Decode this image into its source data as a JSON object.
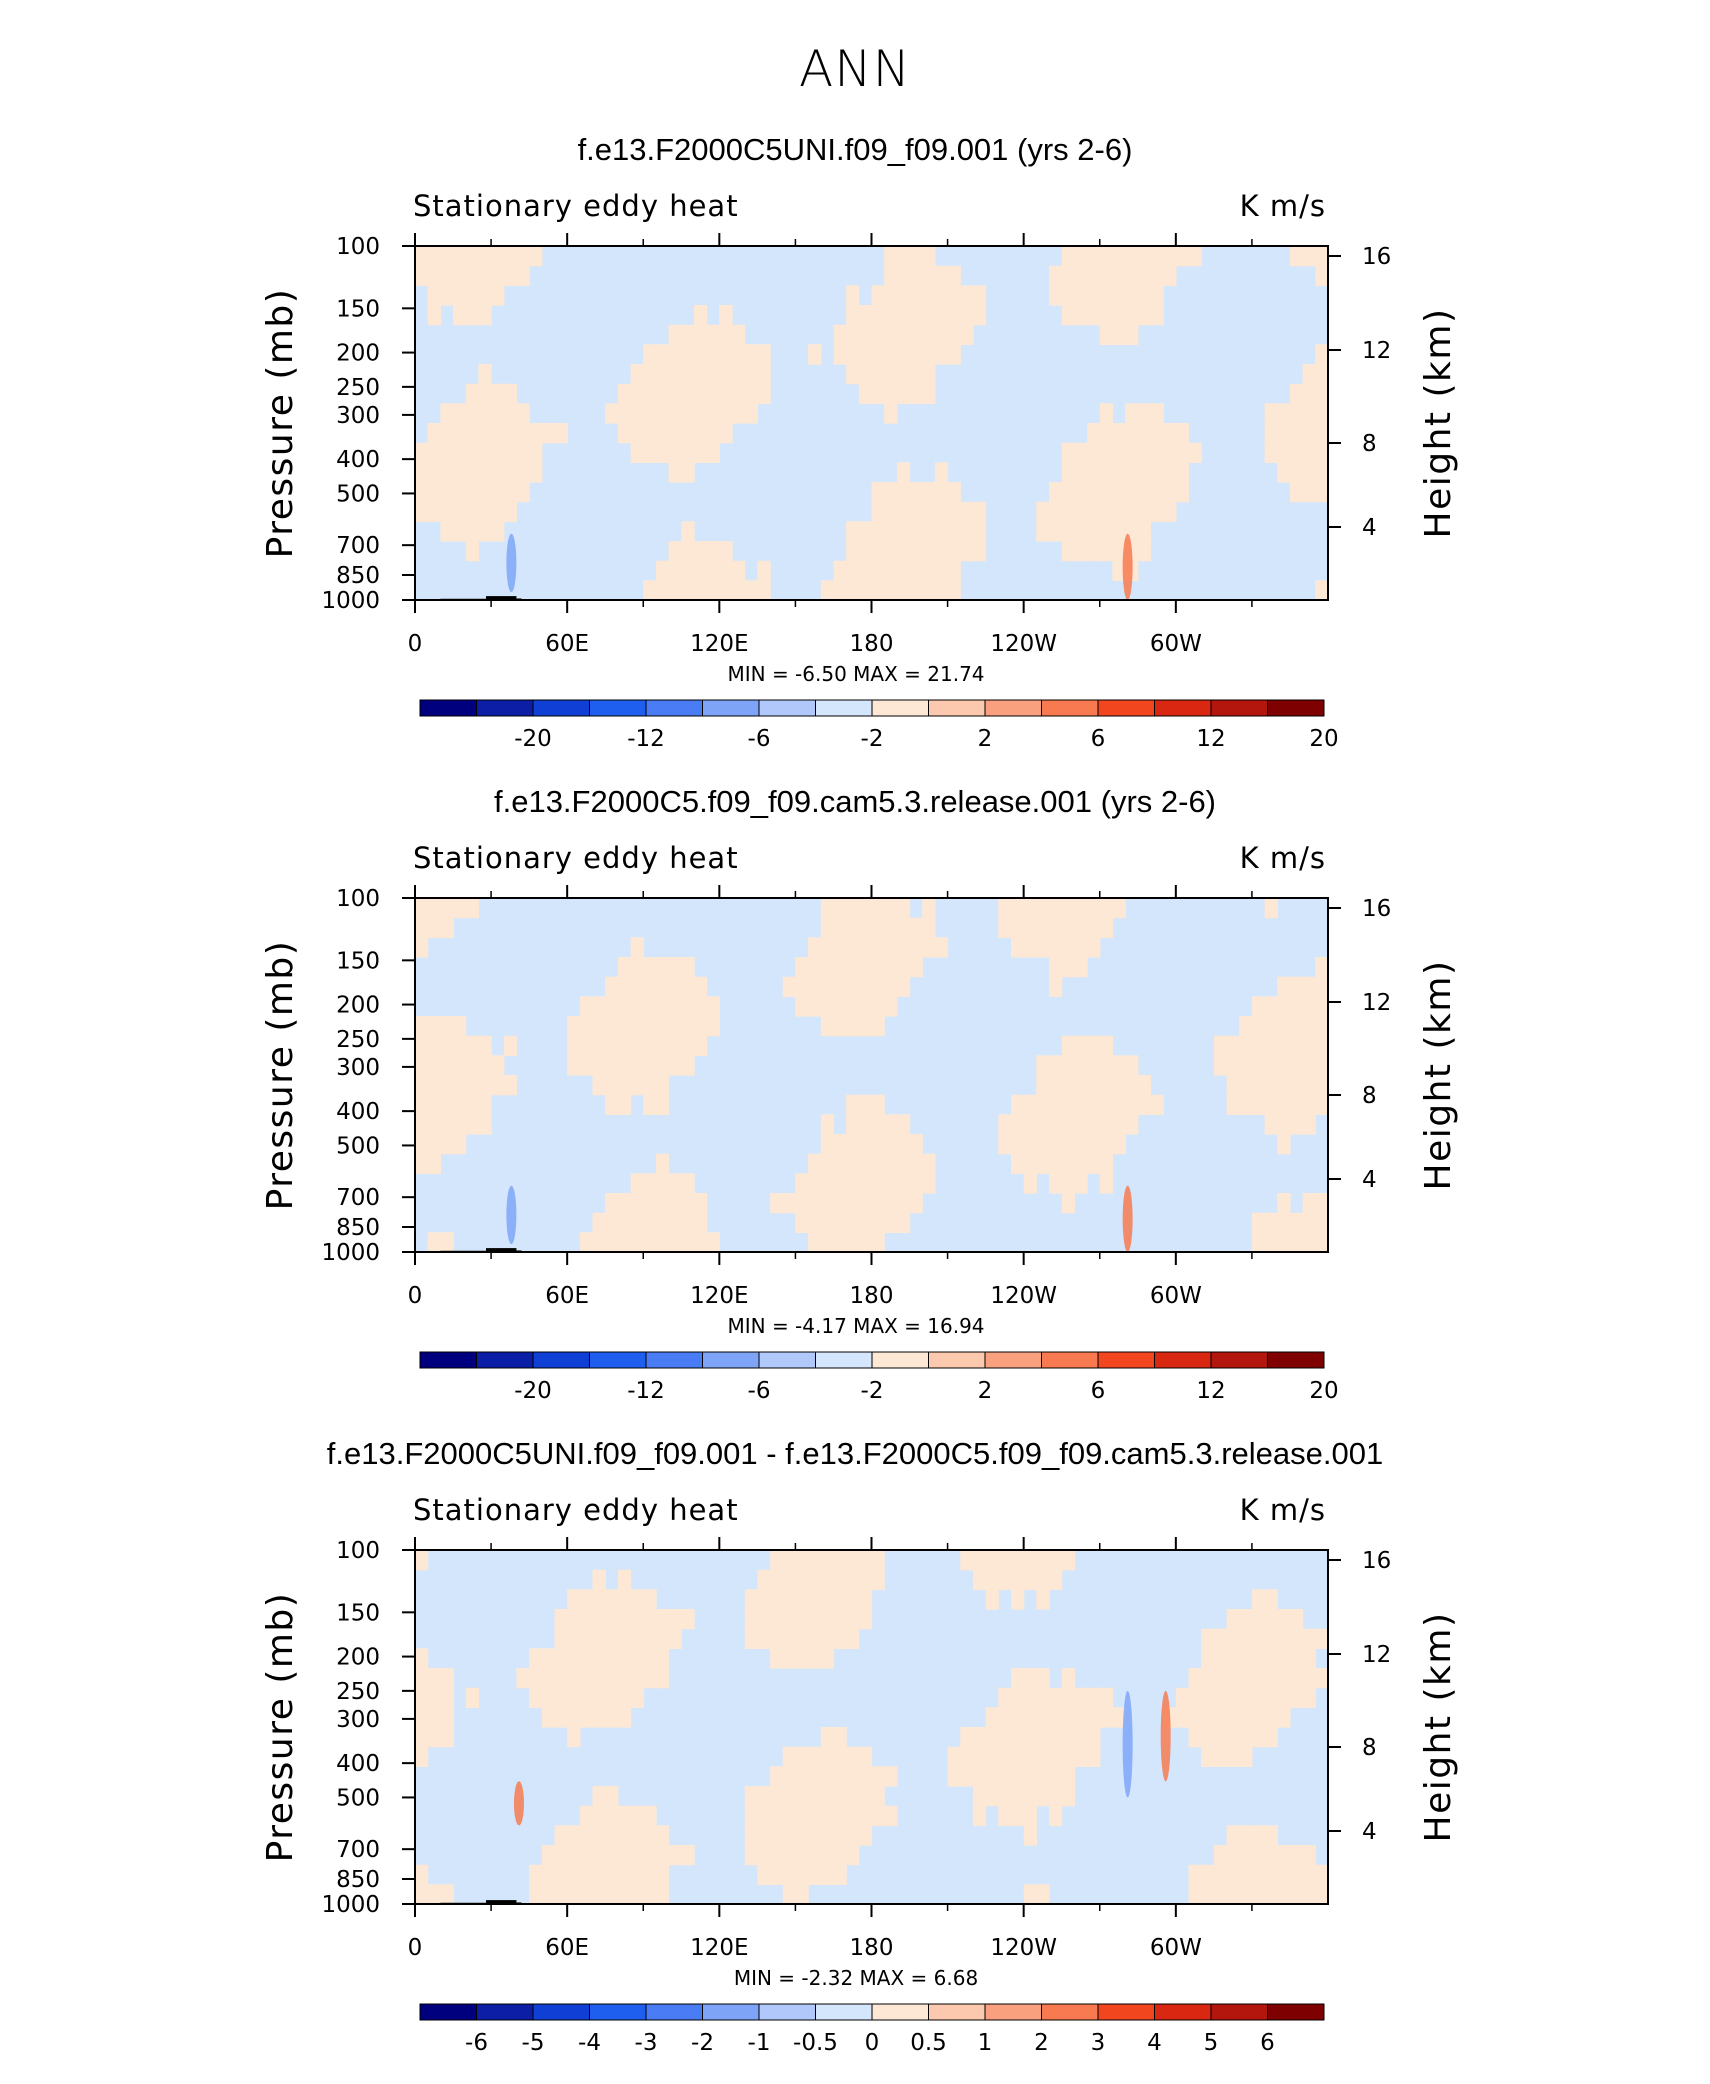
{
  "main_title": "ANN",
  "chart_data": [
    {
      "type": "heatmap",
      "title": "f.e13.F2000C5UNI.f09_f09.001 (yrs 2-6)",
      "left_string": "Stationary eddy heat",
      "right_string": "K m/s",
      "xlabel": "",
      "ylabel": "Pressure (mb)",
      "right_ylabel": "Height (km)",
      "x_ticks": [
        "0",
        "60E",
        "120E",
        "180",
        "120W",
        "60W"
      ],
      "x_tick_values": [
        0,
        60,
        120,
        180,
        240,
        300
      ],
      "xlim": [
        0,
        360
      ],
      "y_ticks": [
        "100",
        "150",
        "200",
        "250",
        "300",
        "400",
        "500",
        "700",
        "850",
        "1000"
      ],
      "y_tick_values": [
        100,
        150,
        200,
        250,
        300,
        400,
        500,
        700,
        850,
        1000
      ],
      "ylim": [
        1000,
        100
      ],
      "y_scale": "log",
      "right_y_ticks": [
        "16",
        "12",
        "8",
        "4"
      ],
      "stats_text": "MIN =   -6.50   MAX =   21.74",
      "colorbar_labels": [
        "-20",
        "-12",
        "-6",
        "-2",
        "2",
        "6",
        "12",
        "20"
      ],
      "colorbar_colors": [
        "#00007f",
        "#0b1ea5",
        "#0f3fd4",
        "#1f5ff0",
        "#4a7df5",
        "#7ea4f7",
        "#b0c9fa",
        "#d3e6fb",
        "#fde8d6",
        "#fcc8ae",
        "#f9a07f",
        "#f77a50",
        "#f2461f",
        "#d92712",
        "#b2160c",
        "#7f0000"
      ],
      "colors": {
        "negative_light": "#d3e6fb",
        "positive_light": "#fde8d6",
        "strong_negative": "#7ea4f7",
        "strong_positive": "#f77a50",
        "topography": "#000000"
      },
      "features": [
        {
          "lon": 38,
          "p": [
            650,
            950
          ],
          "sign": -1,
          "strength": "moderate"
        },
        {
          "lon": 281,
          "p": [
            650,
            1000
          ],
          "sign": 1,
          "strength": "strong"
        }
      ],
      "min": -6.5,
      "max": 21.74
    },
    {
      "type": "heatmap",
      "title": "f.e13.F2000C5.f09_f09.cam5.3.release.001 (yrs 2-6)",
      "left_string": "Stationary eddy heat",
      "right_string": "K m/s",
      "xlabel": "",
      "ylabel": "Pressure (mb)",
      "right_ylabel": "Height (km)",
      "x_ticks": [
        "0",
        "60E",
        "120E",
        "180",
        "120W",
        "60W"
      ],
      "x_tick_values": [
        0,
        60,
        120,
        180,
        240,
        300
      ],
      "xlim": [
        0,
        360
      ],
      "y_ticks": [
        "100",
        "150",
        "200",
        "250",
        "300",
        "400",
        "500",
        "700",
        "850",
        "1000"
      ],
      "y_tick_values": [
        100,
        150,
        200,
        250,
        300,
        400,
        500,
        700,
        850,
        1000
      ],
      "ylim": [
        1000,
        100
      ],
      "y_scale": "log",
      "right_y_ticks": [
        "16",
        "12",
        "8",
        "4"
      ],
      "stats_text": "MIN =   -4.17   MAX =   16.94",
      "colorbar_labels": [
        "-20",
        "-12",
        "-6",
        "-2",
        "2",
        "6",
        "12",
        "20"
      ],
      "colorbar_colors": [
        "#00007f",
        "#0b1ea5",
        "#0f3fd4",
        "#1f5ff0",
        "#4a7df5",
        "#7ea4f7",
        "#b0c9fa",
        "#d3e6fb",
        "#fde8d6",
        "#fcc8ae",
        "#f9a07f",
        "#f77a50",
        "#f2461f",
        "#d92712",
        "#b2160c",
        "#7f0000"
      ],
      "colors": {
        "negative_light": "#d3e6fb",
        "positive_light": "#fde8d6",
        "strong_negative": "#7ea4f7",
        "strong_positive": "#f77a50",
        "topography": "#000000"
      },
      "features": [
        {
          "lon": 38,
          "p": [
            650,
            950
          ],
          "sign": -1,
          "strength": "moderate"
        },
        {
          "lon": 281,
          "p": [
            650,
            1000
          ],
          "sign": 1,
          "strength": "strong"
        }
      ],
      "min": -4.17,
      "max": 16.94
    },
    {
      "type": "heatmap",
      "title": "f.e13.F2000C5UNI.f09_f09.001 - f.e13.F2000C5.f09_f09.cam5.3.release.001",
      "left_string": "Stationary eddy heat",
      "right_string": "K m/s",
      "xlabel": "",
      "ylabel": "Pressure (mb)",
      "right_ylabel": "Height (km)",
      "x_ticks": [
        "0",
        "60E",
        "120E",
        "180",
        "120W",
        "60W"
      ],
      "x_tick_values": [
        0,
        60,
        120,
        180,
        240,
        300
      ],
      "xlim": [
        0,
        360
      ],
      "y_ticks": [
        "100",
        "150",
        "200",
        "250",
        "300",
        "400",
        "500",
        "700",
        "850",
        "1000"
      ],
      "y_tick_values": [
        100,
        150,
        200,
        250,
        300,
        400,
        500,
        700,
        850,
        1000
      ],
      "ylim": [
        1000,
        100
      ],
      "y_scale": "log",
      "right_y_ticks": [
        "16",
        "12",
        "8",
        "4"
      ],
      "stats_text": "MIN =   -2.32   MAX =     6.68",
      "colorbar_labels": [
        "-6",
        "-5",
        "-4",
        "-3",
        "-2",
        "-1",
        "-0.5",
        "0",
        "0.5",
        "1",
        "2",
        "3",
        "4",
        "5",
        "6"
      ],
      "colorbar_colors": [
        "#00007f",
        "#0b1ea5",
        "#0f3fd4",
        "#1f5ff0",
        "#4a7df5",
        "#7ea4f7",
        "#b0c9fa",
        "#d3e6fb",
        "#fde8d6",
        "#fcc8ae",
        "#f9a07f",
        "#f77a50",
        "#f2461f",
        "#d92712",
        "#b2160c",
        "#7f0000"
      ],
      "colors": {
        "negative_light": "#d3e6fb",
        "positive_light": "#fde8d6",
        "strong_negative": "#7ea4f7",
        "strong_positive": "#f77a50",
        "topography": "#000000"
      },
      "features": [
        {
          "lon": 281,
          "p": [
            250,
            500
          ],
          "sign": -1,
          "strength": "moderate"
        },
        {
          "lon": 296,
          "p": [
            250,
            450
          ],
          "sign": 1,
          "strength": "moderate"
        },
        {
          "lon": 41,
          "p": [
            450,
            600
          ],
          "sign": 1,
          "strength": "moderate"
        }
      ],
      "min": -2.32,
      "max": 6.68
    }
  ]
}
